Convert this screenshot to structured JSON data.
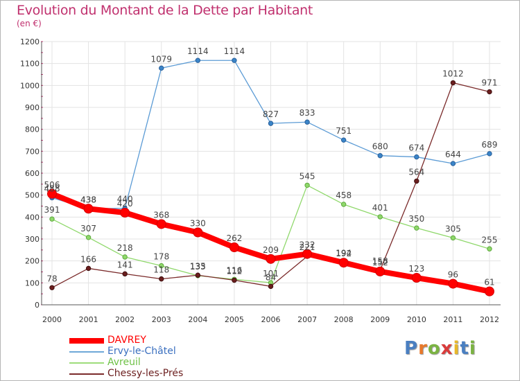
{
  "header": {
    "title": "Evolution du Montant de la Dette par Habitant",
    "subtitle": "(en €)"
  },
  "logo": {
    "text": "Proxiti",
    "letters": [
      "P",
      "r",
      "o",
      "x",
      "i",
      "t",
      "i"
    ],
    "colors": [
      "#4a7fc1",
      "#e8792b",
      "#7bb342",
      "#d93b3b",
      "#e8b82b",
      "#4a7fc1",
      "#7bb342"
    ]
  },
  "chart_data": {
    "type": "line",
    "title": "Evolution du Montant de la Dette par Habitant",
    "subtitle": "(en €)",
    "xlabel": "",
    "ylabel": "",
    "x": [
      "2000",
      "2001",
      "2002",
      "2003",
      "2004",
      "2005",
      "2006",
      "2007",
      "2008",
      "2009",
      "2010",
      "2011",
      "2012"
    ],
    "ylim": [
      0,
      1200
    ],
    "yticks": [
      0,
      100,
      200,
      300,
      400,
      500,
      600,
      700,
      800,
      900,
      1000,
      1100,
      1200
    ],
    "grid": true,
    "legend_position": "bottom-left",
    "series": [
      {
        "name": "DAVREY",
        "color": "#ff0000",
        "values": [
          506,
          438,
          420,
          368,
          330,
          262,
          209,
          232,
          192,
          152,
          123,
          96,
          61
        ],
        "labels": [
          "506",
          "438",
          "420",
          "368",
          "330",
          "262",
          "209",
          "232",
          "192",
          "152",
          "123",
          "96",
          "61"
        ]
      },
      {
        "name": "Ervy-le-Châtel",
        "color": "#5b9bd5",
        "values": [
          488,
          438,
          440,
          1079,
          1114,
          1114,
          827,
          833,
          751,
          680,
          674,
          644,
          689
        ],
        "labels": [
          "488",
          "438",
          "440",
          "1079",
          "1114",
          "1114",
          "827",
          "833",
          "751",
          "680",
          "674",
          "644",
          "689"
        ]
      },
      {
        "name": "Avreuil",
        "color": "#8fd86b",
        "values": [
          391,
          307,
          218,
          178,
          133,
          116,
          101,
          545,
          458,
          401,
          350,
          305,
          255
        ],
        "labels": [
          "391",
          "307",
          "218",
          "178",
          "133",
          "116",
          "101",
          "545",
          "458",
          "401",
          "350",
          "305",
          "255"
        ]
      },
      {
        "name": "Chessy-les-Prés",
        "color": "#7a2a2a",
        "values": [
          78,
          166,
          141,
          118,
          135,
          112,
          84,
          221,
          194,
          158,
          564,
          1012,
          971
        ],
        "labels": [
          "78",
          "166",
          "141",
          "118",
          "135",
          "112",
          "84",
          "221",
          "194",
          "158",
          "564",
          "1012",
          "971"
        ]
      }
    ]
  }
}
